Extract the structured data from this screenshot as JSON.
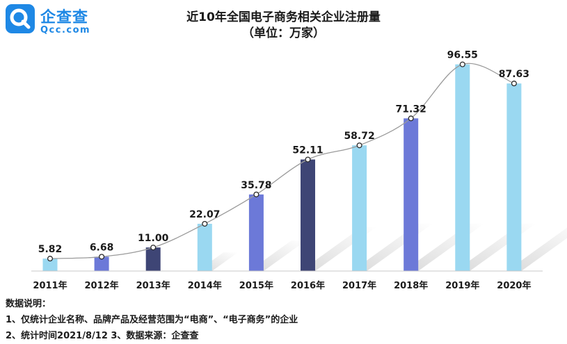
{
  "brand": {
    "name_cn": "企查查",
    "name_en": "Qcc.com",
    "color": "#1e88e5"
  },
  "chart_data": {
    "type": "bar",
    "title": "近10年全国电子商务相关企业注册量",
    "subtitle": "（单位：万家）",
    "categories": [
      "2011年",
      "2012年",
      "2013年",
      "2014年",
      "2015年",
      "2016年",
      "2017年",
      "2018年",
      "2019年",
      "2020年"
    ],
    "values": [
      5.82,
      6.68,
      11.0,
      22.07,
      35.78,
      52.11,
      58.72,
      71.32,
      96.55,
      87.63
    ],
    "value_labels": [
      "5.82",
      "6.68",
      "11.00",
      "22.07",
      "35.78",
      "52.11",
      "58.72",
      "71.32",
      "96.55",
      "87.63"
    ],
    "bar_colors": [
      "#9ad8f1",
      "#6c79d8",
      "#3e4575",
      "#9ad8f1",
      "#6c79d8",
      "#3e4575",
      "#9ad8f1",
      "#6c79d8",
      "#9ad8f1",
      "#9ad8f1"
    ],
    "trend_line": true,
    "ylim": [
      0,
      100
    ],
    "grid": false,
    "legend": "none"
  },
  "notes": {
    "heading": "数据说明：",
    "line1": "1、仅统计企业名称、品牌产品及经营范围为“电商”、“电子商务”的企业",
    "line2": "2、统计时间2021/8/12    3、数据来源：企查查"
  }
}
